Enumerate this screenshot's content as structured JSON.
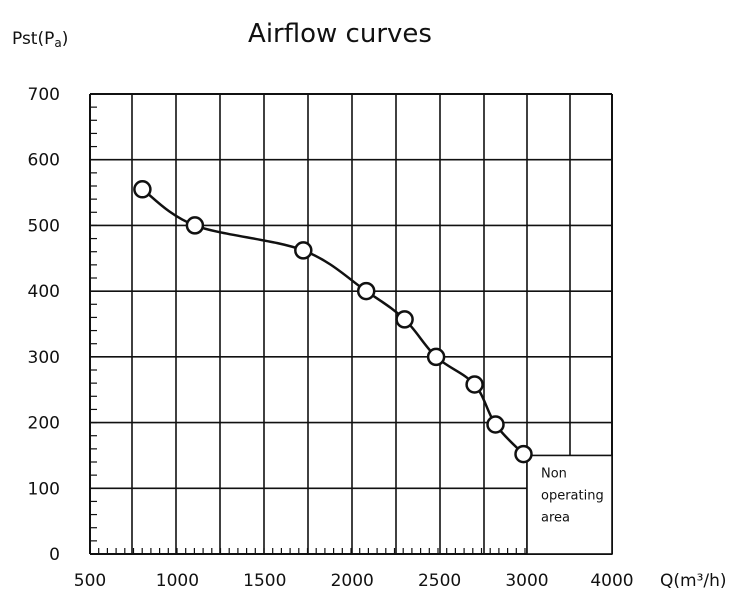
{
  "chart_data": {
    "type": "line",
    "title": "Airflow curves",
    "xlabel": "Q(m³/h)",
    "ylabel": "Pst(Pa)",
    "xlim": [
      500,
      4000
    ],
    "ylim": [
      0,
      700
    ],
    "xticks": [
      "500",
      "1000",
      "1500",
      "2000",
      "2500",
      "3000",
      "4000"
    ],
    "yticks": [
      "0",
      "100",
      "200",
      "300",
      "400",
      "500",
      "600",
      "700"
    ],
    "grid": true,
    "series": [
      {
        "x": [
          800,
          1100,
          1720,
          2080,
          2300,
          2480,
          2700,
          2820,
          2980
        ],
        "y": [
          555,
          500,
          462,
          400,
          357,
          300,
          258,
          197,
          152
        ]
      }
    ],
    "annotation": {
      "lines": [
        "Non",
        "operating",
        "area"
      ]
    }
  }
}
